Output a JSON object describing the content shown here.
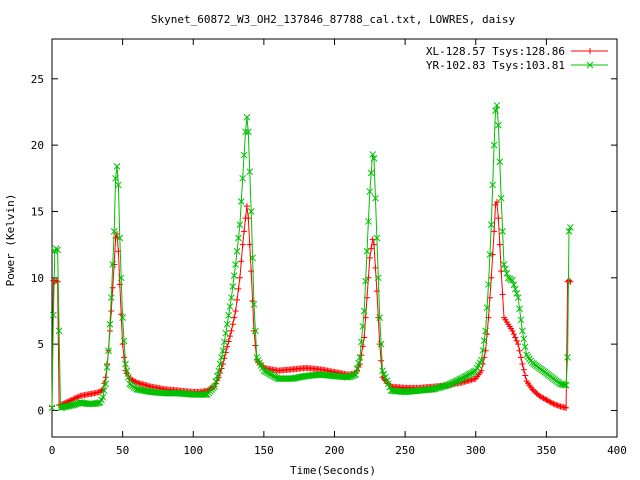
{
  "chart_data": {
    "type": "line",
    "title": "Skynet_60872_W3_OH2_137846_87788_cal.txt, LOWRES, daisy",
    "xlabel": "Time(Seconds)",
    "ylabel": "Power (Kelvin)",
    "xlim": [
      0,
      400
    ],
    "ylim": [
      -2,
      28
    ],
    "xticks": [
      0,
      50,
      100,
      150,
      200,
      250,
      300,
      350,
      400
    ],
    "yticks": [
      0,
      5,
      10,
      15,
      20,
      25
    ],
    "grid": false,
    "legend_position": "top-right",
    "series": [
      {
        "name": "XL-128.57 Tsys:128.86",
        "color": "#ff0000",
        "marker": "plus",
        "points": [
          [
            0,
            0.3
          ],
          [
            1,
            9.8
          ],
          [
            2,
            9.7
          ],
          [
            3,
            9.8
          ],
          [
            4,
            9.7
          ],
          [
            5,
            0.4
          ],
          [
            8,
            0.5
          ],
          [
            12,
            0.7
          ],
          [
            16,
            0.9
          ],
          [
            20,
            1.1
          ],
          [
            25,
            1.2
          ],
          [
            30,
            1.3
          ],
          [
            34,
            1.4
          ],
          [
            36,
            1.6
          ],
          [
            38,
            2.5
          ],
          [
            40,
            4.5
          ],
          [
            42,
            7.5
          ],
          [
            44,
            11.0
          ],
          [
            45,
            13.0
          ],
          [
            46,
            13.3
          ],
          [
            47,
            12.0
          ],
          [
            48,
            9.5
          ],
          [
            50,
            5.0
          ],
          [
            52,
            3.0
          ],
          [
            55,
            2.4
          ],
          [
            60,
            2.1
          ],
          [
            70,
            1.8
          ],
          [
            80,
            1.6
          ],
          [
            90,
            1.5
          ],
          [
            100,
            1.4
          ],
          [
            105,
            1.4
          ],
          [
            110,
            1.5
          ],
          [
            115,
            1.8
          ],
          [
            118,
            2.5
          ],
          [
            121,
            3.5
          ],
          [
            124,
            4.8
          ],
          [
            127,
            6.0
          ],
          [
            130,
            7.5
          ],
          [
            133,
            10.0
          ],
          [
            135,
            12.5
          ],
          [
            137,
            14.5
          ],
          [
            138,
            15.4
          ],
          [
            139,
            14.5
          ],
          [
            141,
            10.5
          ],
          [
            143,
            6.0
          ],
          [
            145,
            3.8
          ],
          [
            150,
            3.2
          ],
          [
            160,
            3.0
          ],
          [
            170,
            3.1
          ],
          [
            180,
            3.2
          ],
          [
            190,
            3.1
          ],
          [
            200,
            2.9
          ],
          [
            210,
            2.7
          ],
          [
            215,
            2.8
          ],
          [
            218,
            3.5
          ],
          [
            221,
            5.5
          ],
          [
            223,
            8.5
          ],
          [
            225,
            11.5
          ],
          [
            227,
            12.9
          ],
          [
            228,
            12.5
          ],
          [
            230,
            9.0
          ],
          [
            232,
            5.0
          ],
          [
            234,
            2.5
          ],
          [
            240,
            1.8
          ],
          [
            250,
            1.7
          ],
          [
            260,
            1.7
          ],
          [
            270,
            1.8
          ],
          [
            280,
            1.9
          ],
          [
            290,
            2.1
          ],
          [
            300,
            2.4
          ],
          [
            304,
            3.0
          ],
          [
            307,
            4.5
          ],
          [
            309,
            7.0
          ],
          [
            311,
            10.0
          ],
          [
            313,
            13.5
          ],
          [
            314,
            15.5
          ],
          [
            315,
            15.7
          ],
          [
            316,
            14.5
          ],
          [
            318,
            10.5
          ],
          [
            320,
            7.0
          ],
          [
            323,
            6.5
          ],
          [
            326,
            6.0
          ],
          [
            330,
            5.0
          ],
          [
            333,
            3.5
          ],
          [
            336,
            2.2
          ],
          [
            340,
            1.6
          ],
          [
            345,
            1.1
          ],
          [
            350,
            0.8
          ],
          [
            355,
            0.5
          ],
          [
            360,
            0.3
          ],
          [
            364,
            0.2
          ],
          [
            365,
            9.7
          ],
          [
            366,
            9.8
          ],
          [
            367,
            9.7
          ]
        ]
      },
      {
        "name": "YR-102.83 Tsys:103.81",
        "color": "#00c000",
        "marker": "cross",
        "points": [
          [
            0,
            0.2
          ],
          [
            1,
            7.2
          ],
          [
            2,
            12.0
          ],
          [
            3,
            12.2
          ],
          [
            4,
            12.1
          ],
          [
            5,
            6.0
          ],
          [
            6,
            0.2
          ],
          [
            10,
            0.3
          ],
          [
            15,
            0.4
          ],
          [
            20,
            0.6
          ],
          [
            25,
            0.5
          ],
          [
            30,
            0.5
          ],
          [
            34,
            0.6
          ],
          [
            36,
            1.0
          ],
          [
            38,
            2.0
          ],
          [
            40,
            4.5
          ],
          [
            42,
            8.5
          ],
          [
            44,
            13.5
          ],
          [
            45,
            17.5
          ],
          [
            46,
            18.4
          ],
          [
            47,
            17.0
          ],
          [
            48,
            13.0
          ],
          [
            50,
            7.0
          ],
          [
            52,
            3.5
          ],
          [
            55,
            2.0
          ],
          [
            60,
            1.6
          ],
          [
            70,
            1.4
          ],
          [
            80,
            1.3
          ],
          [
            90,
            1.3
          ],
          [
            100,
            1.2
          ],
          [
            110,
            1.2
          ],
          [
            115,
            1.8
          ],
          [
            118,
            3.0
          ],
          [
            121,
            4.5
          ],
          [
            124,
            6.5
          ],
          [
            127,
            8.5
          ],
          [
            130,
            11.0
          ],
          [
            133,
            14.0
          ],
          [
            135,
            17.5
          ],
          [
            137,
            21.0
          ],
          [
            138,
            22.1
          ],
          [
            139,
            21.0
          ],
          [
            141,
            15.0
          ],
          [
            143,
            8.0
          ],
          [
            145,
            4.0
          ],
          [
            150,
            3.0
          ],
          [
            160,
            2.4
          ],
          [
            170,
            2.4
          ],
          [
            180,
            2.6
          ],
          [
            190,
            2.7
          ],
          [
            200,
            2.6
          ],
          [
            210,
            2.5
          ],
          [
            215,
            2.7
          ],
          [
            218,
            4.0
          ],
          [
            221,
            7.5
          ],
          [
            223,
            12.0
          ],
          [
            225,
            16.5
          ],
          [
            227,
            19.3
          ],
          [
            228,
            19.0
          ],
          [
            230,
            13.0
          ],
          [
            232,
            7.0
          ],
          [
            234,
            3.0
          ],
          [
            240,
            1.5
          ],
          [
            250,
            1.4
          ],
          [
            260,
            1.5
          ],
          [
            270,
            1.6
          ],
          [
            280,
            1.9
          ],
          [
            290,
            2.4
          ],
          [
            300,
            3.0
          ],
          [
            304,
            3.8
          ],
          [
            307,
            6.0
          ],
          [
            309,
            9.5
          ],
          [
            311,
            14.0
          ],
          [
            313,
            20.0
          ],
          [
            314,
            22.6
          ],
          [
            315,
            23.0
          ],
          [
            316,
            21.5
          ],
          [
            318,
            16.0
          ],
          [
            320,
            11.0
          ],
          [
            323,
            10.0
          ],
          [
            326,
            9.8
          ],
          [
            330,
            8.5
          ],
          [
            333,
            6.0
          ],
          [
            336,
            4.2
          ],
          [
            340,
            3.6
          ],
          [
            345,
            3.2
          ],
          [
            350,
            2.8
          ],
          [
            355,
            2.4
          ],
          [
            360,
            2.0
          ],
          [
            364,
            1.9
          ],
          [
            365,
            4.0
          ],
          [
            366,
            13.5
          ],
          [
            367,
            13.8
          ]
        ]
      }
    ]
  }
}
